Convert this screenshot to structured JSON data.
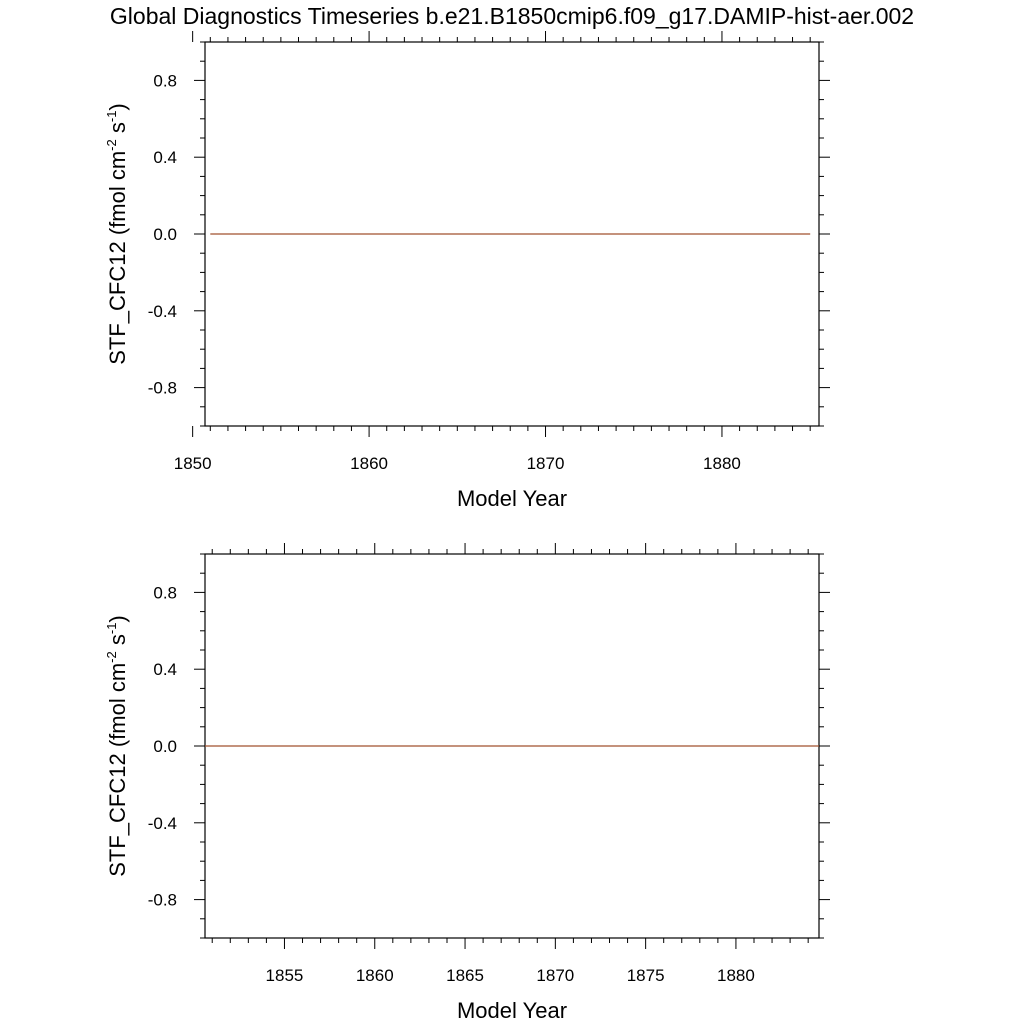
{
  "title": "Global Diagnostics Timeseries b.e21.B1850cmip6.f09_g17.DAMIP-hist-aer.002",
  "ylabel": {
    "main": "STF_CFC12 (fmol cm",
    "exp1": "-2",
    "mid": " s",
    "exp2": "-1",
    "end": ")"
  },
  "chart_data": [
    {
      "type": "line",
      "xlabel": "Model Year",
      "ylabel": "STF_CFC12 (fmol cm-2 s-1)",
      "xlim": [
        1850.7,
        1885.5
      ],
      "ylim": [
        -1.0,
        1.0
      ],
      "xticks": [
        1850,
        1860,
        1870,
        1880
      ],
      "yticks": [
        -0.8,
        -0.4,
        0.0,
        0.4,
        0.8
      ],
      "grid": false,
      "series": [
        {
          "color": "#a0522d",
          "x": [
            1851,
            1855,
            1860,
            1865,
            1870,
            1875,
            1880,
            1885
          ],
          "values": [
            0,
            0,
            0,
            0,
            0,
            0,
            0,
            0
          ]
        }
      ]
    },
    {
      "type": "line",
      "xlabel": "Model Year",
      "ylabel": "STF_CFC12 (fmol cm-2 s-1)",
      "xlim": [
        1850.6,
        1884.6
      ],
      "ylim": [
        -1.0,
        1.0
      ],
      "xticks": [
        1855,
        1860,
        1865,
        1870,
        1875,
        1880
      ],
      "yticks": [
        -0.8,
        -0.4,
        0.0,
        0.4,
        0.8
      ],
      "grid": false,
      "series": [
        {
          "color": "#a0522d",
          "x": [
            1850.6,
            1855,
            1860,
            1865,
            1870,
            1875,
            1880,
            1884.6
          ],
          "values": [
            0,
            0,
            0,
            0,
            0,
            0,
            0,
            0
          ]
        }
      ]
    }
  ]
}
